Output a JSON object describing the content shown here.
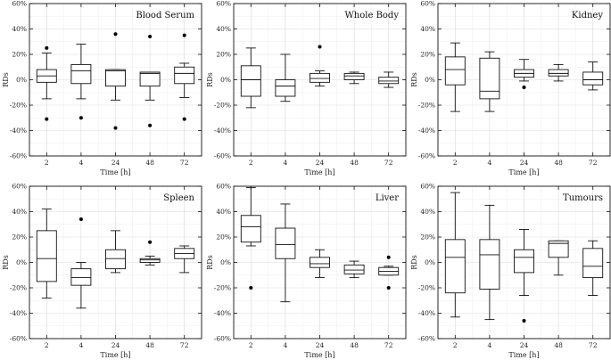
{
  "chart_data": [
    {
      "type": "box",
      "title": "Blood Serum",
      "xlabel": "Time [h]",
      "ylabel": "RDs",
      "categories": [
        "2",
        "4",
        "24",
        "48",
        "72"
      ],
      "ylim": [
        -60,
        60
      ],
      "yticks": [
        "-60%",
        "-40%",
        "-20%",
        "0%",
        "20%",
        "40%",
        "60%"
      ],
      "grid": true,
      "boxes": [
        {
          "whisker_low": -15,
          "q1": -2,
          "median": 3,
          "q3": 8,
          "whisker_high": 21,
          "outliers": [
            25,
            -31
          ]
        },
        {
          "whisker_low": -15,
          "q1": -3,
          "median": 7,
          "q3": 12,
          "whisker_high": 28,
          "outliers": [
            -30
          ]
        },
        {
          "whisker_low": -16,
          "q1": -5,
          "median": 7,
          "q3": 8,
          "whisker_high": 8,
          "outliers": [
            36,
            -38
          ]
        },
        {
          "whisker_low": -16,
          "q1": -5,
          "median": 5,
          "q3": 6,
          "whisker_high": 6,
          "outliers": [
            34,
            -36
          ]
        },
        {
          "whisker_low": -14,
          "q1": -3,
          "median": 5,
          "q3": 10,
          "whisker_high": 13,
          "outliers": [
            35,
            -31
          ]
        }
      ]
    },
    {
      "type": "box",
      "title": "Whole Body",
      "xlabel": "Time [h]",
      "ylabel": "RDs",
      "categories": [
        "2",
        "4",
        "24",
        "48",
        "72"
      ],
      "ylim": [
        -60,
        60
      ],
      "yticks": [
        "-60%",
        "-40%",
        "-20%",
        "0%",
        "20%",
        "40%",
        "60%"
      ],
      "grid": true,
      "boxes": [
        {
          "whisker_low": -22,
          "q1": -13,
          "median": 0,
          "q3": 11,
          "whisker_high": 25,
          "outliers": []
        },
        {
          "whisker_low": -17,
          "q1": -13,
          "median": -5,
          "q3": 0,
          "whisker_high": 20,
          "outliers": []
        },
        {
          "whisker_low": -5,
          "q1": -2,
          "median": 1,
          "q3": 5,
          "whisker_high": 7,
          "outliers": [
            26
          ]
        },
        {
          "whisker_low": -3,
          "q1": 0,
          "median": 3,
          "q3": 5,
          "whisker_high": 6,
          "outliers": []
        },
        {
          "whisker_low": -6,
          "q1": -3,
          "median": -1,
          "q3": 2,
          "whisker_high": 6,
          "outliers": []
        }
      ]
    },
    {
      "type": "box",
      "title": "Kidney",
      "xlabel": "Time [h]",
      "ylabel": "RDs",
      "categories": [
        "2",
        "4",
        "24",
        "48",
        "72"
      ],
      "ylim": [
        -60,
        60
      ],
      "yticks": [
        "-60%",
        "-40%",
        "-20%",
        "0%",
        "20%",
        "40%",
        "60%"
      ],
      "grid": true,
      "boxes": [
        {
          "whisker_low": -25,
          "q1": -4,
          "median": 8,
          "q3": 18,
          "whisker_high": 29,
          "outliers": []
        },
        {
          "whisker_low": -25,
          "q1": -15,
          "median": -9,
          "q3": 17,
          "whisker_high": 22,
          "outliers": []
        },
        {
          "whisker_low": -1,
          "q1": 2,
          "median": 5,
          "q3": 8,
          "whisker_high": 16,
          "outliers": [
            -6
          ]
        },
        {
          "whisker_low": -1,
          "q1": 3,
          "median": 5,
          "q3": 8,
          "whisker_high": 12,
          "outliers": []
        },
        {
          "whisker_low": -8,
          "q1": -4,
          "median": 0,
          "q3": 6,
          "whisker_high": 14,
          "outliers": []
        }
      ]
    },
    {
      "type": "box",
      "title": "Spleen",
      "xlabel": "Time [h]",
      "ylabel": "RDs",
      "categories": [
        "2",
        "4",
        "24",
        "48",
        "72"
      ],
      "ylim": [
        -60,
        60
      ],
      "yticks": [
        "-60%",
        "-40%",
        "-20%",
        "0%",
        "20%",
        "40%",
        "60%"
      ],
      "grid": true,
      "boxes": [
        {
          "whisker_low": -28,
          "q1": -15,
          "median": 3,
          "q3": 25,
          "whisker_high": 42,
          "outliers": []
        },
        {
          "whisker_low": -36,
          "q1": -18,
          "median": -12,
          "q3": -5,
          "whisker_high": 0,
          "outliers": [
            34
          ]
        },
        {
          "whisker_low": -8,
          "q1": -5,
          "median": 3,
          "q3": 10,
          "whisker_high": 25,
          "outliers": []
        },
        {
          "whisker_low": -2,
          "q1": 0,
          "median": 2,
          "q3": 3,
          "whisker_high": 5,
          "outliers": [
            16
          ]
        },
        {
          "whisker_low": -8,
          "q1": 3,
          "median": 7,
          "q3": 11,
          "whisker_high": 13,
          "outliers": []
        }
      ]
    },
    {
      "type": "box",
      "title": "Liver",
      "xlabel": "Time [h]",
      "ylabel": "RDs",
      "categories": [
        "2",
        "4",
        "24",
        "48",
        "72"
      ],
      "ylim": [
        -60,
        60
      ],
      "yticks": [
        "-60%",
        "-40%",
        "-20%",
        "0%",
        "20%",
        "40%",
        "60%"
      ],
      "grid": true,
      "boxes": [
        {
          "whisker_low": 13,
          "q1": 16,
          "median": 28,
          "q3": 37,
          "whisker_high": 59,
          "outliers": [
            -20
          ]
        },
        {
          "whisker_low": -31,
          "q1": 3,
          "median": 14,
          "q3": 27,
          "whisker_high": 46,
          "outliers": []
        },
        {
          "whisker_low": -12,
          "q1": -4,
          "median": -1,
          "q3": 4,
          "whisker_high": 10,
          "outliers": []
        },
        {
          "whisker_low": -12,
          "q1": -9,
          "median": -6,
          "q3": -2,
          "whisker_high": 1,
          "outliers": []
        },
        {
          "whisker_low": -10,
          "q1": -10,
          "median": -7,
          "q3": -4,
          "whisker_high": -3,
          "outliers": [
            4,
            -20
          ]
        }
      ]
    },
    {
      "type": "box",
      "title": "Tumours",
      "xlabel": "Time [h]",
      "ylabel": "RDs",
      "categories": [
        "2",
        "4",
        "24",
        "48",
        "72"
      ],
      "ylim": [
        -60,
        60
      ],
      "yticks": [
        "-60%",
        "-40%",
        "-20%",
        "0%",
        "20%",
        "40%",
        "60%"
      ],
      "grid": true,
      "boxes": [
        {
          "whisker_low": -43,
          "q1": -24,
          "median": 4,
          "q3": 18,
          "whisker_high": 55,
          "outliers": []
        },
        {
          "whisker_low": -45,
          "q1": -21,
          "median": 6,
          "q3": 18,
          "whisker_high": 45,
          "outliers": []
        },
        {
          "whisker_low": -26,
          "q1": -8,
          "median": 4,
          "q3": 10,
          "whisker_high": 26,
          "outliers": [
            -46
          ]
        },
        {
          "whisker_low": -10,
          "q1": 4,
          "median": 15,
          "q3": 17,
          "whisker_high": 17,
          "outliers": []
        },
        {
          "whisker_low": -26,
          "q1": -12,
          "median": -3,
          "q3": 11,
          "whisker_high": 17,
          "outliers": []
        }
      ]
    }
  ]
}
